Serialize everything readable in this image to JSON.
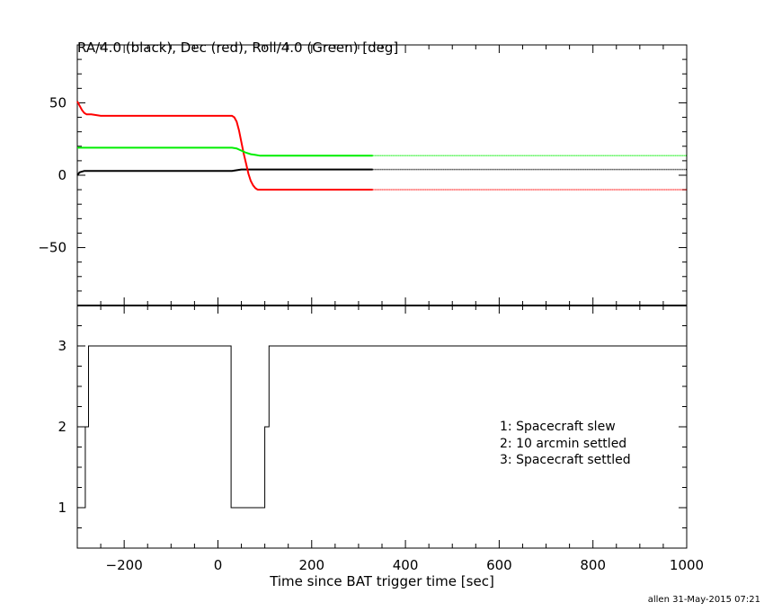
{
  "chart_data": [
    {
      "type": "line",
      "title": "RA/4.0 (black), Dec (red), Roll/4.0 (Green) [deg]",
      "xlim": [
        -300,
        1000
      ],
      "ylim": [
        -90,
        90
      ],
      "yticks": [
        50,
        0,
        -50
      ],
      "grid": false,
      "series": [
        {
          "name": "RA/4.0",
          "color": "#000000",
          "x": [
            -300,
            -295,
            -285,
            -270,
            0,
            30,
            50,
            70,
            90,
            150,
            330,
            1000
          ],
          "y": [
            0,
            2,
            3,
            3,
            3,
            3,
            4,
            4,
            4,
            4,
            4,
            4
          ]
        },
        {
          "name": "Dec",
          "color": "#ff0000",
          "x": [
            -300,
            -295,
            -290,
            -285,
            -280,
            -270,
            -250,
            0,
            30,
            35,
            40,
            45,
            50,
            55,
            60,
            65,
            70,
            75,
            80,
            85,
            90,
            100,
            330,
            1000
          ],
          "y": [
            51,
            48,
            45,
            43,
            42,
            42,
            41,
            41,
            41,
            40,
            37,
            31,
            23,
            15,
            8,
            1,
            -4,
            -7,
            -9,
            -10,
            -10,
            -10,
            -10,
            -10
          ]
        },
        {
          "name": "Roll/4.0",
          "color": "#00ee00",
          "x": [
            -300,
            0,
            30,
            40,
            50,
            60,
            70,
            80,
            90,
            100,
            330,
            1000
          ],
          "y": [
            19,
            19,
            19,
            18.5,
            17,
            15.5,
            14.5,
            14,
            13.5,
            13.5,
            13.5,
            13.5
          ]
        }
      ]
    },
    {
      "type": "line",
      "step": true,
      "xlim": [
        -300,
        1000
      ],
      "ylim": [
        0.5,
        3.5
      ],
      "yticks": [
        3,
        2,
        1
      ],
      "xticks": [
        -200,
        0,
        200,
        400,
        600,
        800,
        1000
      ],
      "xlabel": "Time since BAT trigger time [sec]",
      "grid": false,
      "series": [
        {
          "color": "#000000",
          "x": [
            -300,
            -283,
            -283,
            -276,
            -276,
            28,
            28,
            100,
            100,
            109,
            109,
            1000
          ],
          "y": [
            1,
            1,
            2,
            2,
            3,
            3,
            1,
            1,
            2,
            2,
            3,
            3
          ]
        }
      ],
      "annotations": [
        "1: Spacecraft slew",
        "2: 10 arcmin settled",
        "3: Spacecraft settled"
      ]
    }
  ],
  "footer": "allen 31-May-2015 07:21"
}
